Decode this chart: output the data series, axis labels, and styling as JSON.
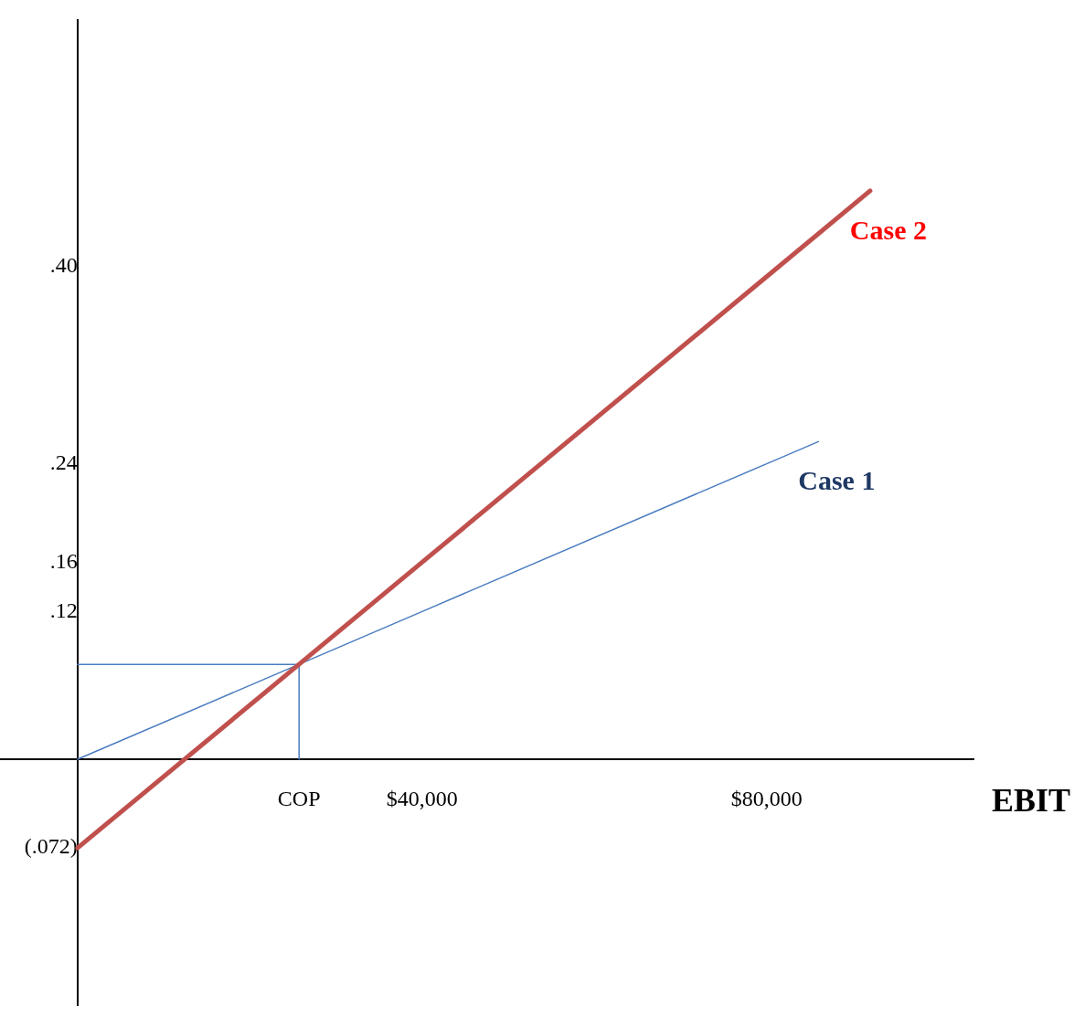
{
  "chart_data": {
    "type": "line",
    "xlabel": "EBIT",
    "xlim": [
      -9000,
      104000
    ],
    "ylim": [
      -0.2,
      0.6
    ],
    "xticks": [
      {
        "value": 25714,
        "label": "COP"
      },
      {
        "value": 40000,
        "label": "$40,000"
      },
      {
        "value": 80000,
        "label": "$80,000"
      }
    ],
    "yticks": [
      {
        "value": -0.072,
        "label": "(.072)"
      },
      {
        "value": 0.12,
        "label": ".12"
      },
      {
        "value": 0.16,
        "label": ".16"
      },
      {
        "value": 0.24,
        "label": ".24"
      },
      {
        "value": 0.4,
        "label": ".40"
      }
    ],
    "series": [
      {
        "name": "Case 2",
        "color": "#c0504d",
        "x": [
          0,
          25714,
          40000,
          80000,
          92000
        ],
        "values": [
          -0.072,
          0.0771,
          0.16,
          0.392,
          0.4616
        ]
      },
      {
        "name": "Case 1",
        "color": "#4a7cc0",
        "x": [
          0,
          25714,
          40000,
          80000,
          86000
        ],
        "values": [
          0,
          0.0771,
          0.12,
          0.24,
          0.258
        ]
      },
      {
        "color": "#4a7cc0",
        "x": [
          0,
          25714,
          25714
        ],
        "values": [
          0.0771,
          0.0771,
          0
        ]
      }
    ],
    "grid": false,
    "legend": false,
    "marker": "none",
    "line_style": "solid"
  }
}
